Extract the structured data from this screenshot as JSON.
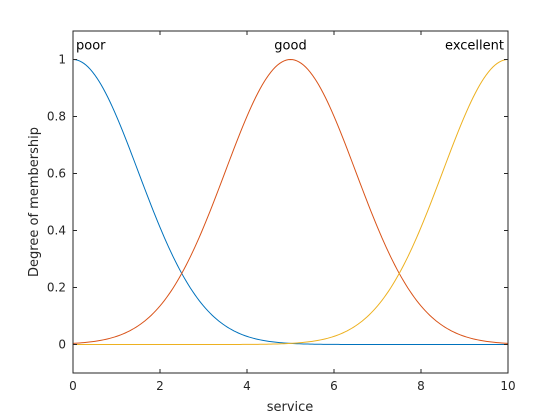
{
  "chart_data": {
    "type": "line",
    "xlabel": "service",
    "ylabel": "Degree of membership",
    "xlim": [
      0,
      10
    ],
    "ylim": [
      -0.1,
      1.1
    ],
    "xticks": [
      0,
      2,
      4,
      6,
      8,
      10
    ],
    "yticks": [
      0,
      0.2,
      0.4,
      0.6,
      0.8,
      1
    ],
    "grid": false,
    "membership_function": "gaussian",
    "series": [
      {
        "name": "poor",
        "center": 0,
        "sigma": 1.5,
        "color": "#0072BD",
        "x": [
          0,
          1,
          2,
          2.5,
          3,
          4,
          5,
          6,
          7,
          8,
          9,
          10
        ],
        "values": [
          1.0,
          0.8,
          0.41,
          0.25,
          0.14,
          0.03,
          0.004,
          0.0,
          0.0,
          0.0,
          0.0,
          0.0
        ]
      },
      {
        "name": "good",
        "center": 5,
        "sigma": 1.5,
        "color": "#D95319",
        "x": [
          0,
          1,
          2,
          2.5,
          3,
          4,
          5,
          6,
          7,
          7.5,
          8,
          9,
          10
        ],
        "values": [
          0.004,
          0.03,
          0.14,
          0.25,
          0.41,
          0.8,
          1.0,
          0.8,
          0.41,
          0.25,
          0.14,
          0.03,
          0.004
        ]
      },
      {
        "name": "excellent",
        "center": 10,
        "sigma": 1.5,
        "color": "#EDB120",
        "x": [
          0,
          1,
          2,
          3,
          4,
          5,
          6,
          7,
          7.5,
          8,
          9,
          10
        ],
        "values": [
          0.0,
          0.0,
          0.0,
          0.0,
          0.0,
          0.004,
          0.03,
          0.14,
          0.25,
          0.41,
          0.8,
          1.0
        ]
      }
    ]
  }
}
